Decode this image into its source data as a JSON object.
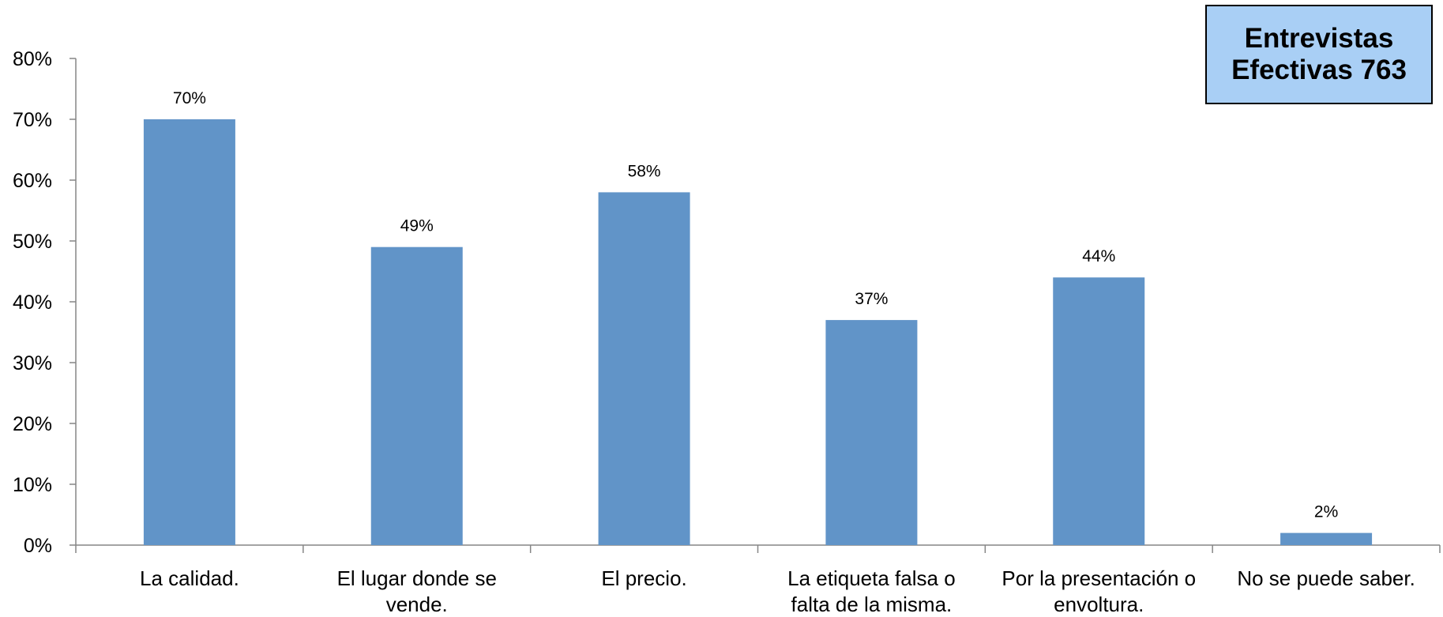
{
  "info_box": {
    "line1": "Entrevistas",
    "line2": "Efectivas 763"
  },
  "colors": {
    "bar": "#6194c8",
    "axis": "#868686",
    "box_fill": "#a9cff5"
  },
  "chart_data": {
    "type": "bar",
    "categories": [
      [
        "La calidad."
      ],
      [
        "El lugar donde se",
        "vende."
      ],
      [
        "El precio."
      ],
      [
        "La etiqueta falsa o",
        "falta de la misma."
      ],
      [
        "Por la presentación o",
        "envoltura."
      ],
      [
        "No se puede saber."
      ]
    ],
    "values": [
      70,
      49,
      58,
      37,
      44,
      2
    ],
    "data_labels": [
      "70%",
      "49%",
      "58%",
      "37%",
      "44%",
      "2%"
    ],
    "y_ticks": [
      {
        "value": 0,
        "label": "0%"
      },
      {
        "value": 10,
        "label": "10%"
      },
      {
        "value": 20,
        "label": "20%"
      },
      {
        "value": 30,
        "label": "30%"
      },
      {
        "value": 40,
        "label": "40%"
      },
      {
        "value": 50,
        "label": "50%"
      },
      {
        "value": 60,
        "label": "60%"
      },
      {
        "value": 70,
        "label": "70%"
      },
      {
        "value": 80,
        "label": "80%"
      }
    ],
    "ylim": [
      0,
      80
    ],
    "grid": false,
    "legend": "none"
  }
}
